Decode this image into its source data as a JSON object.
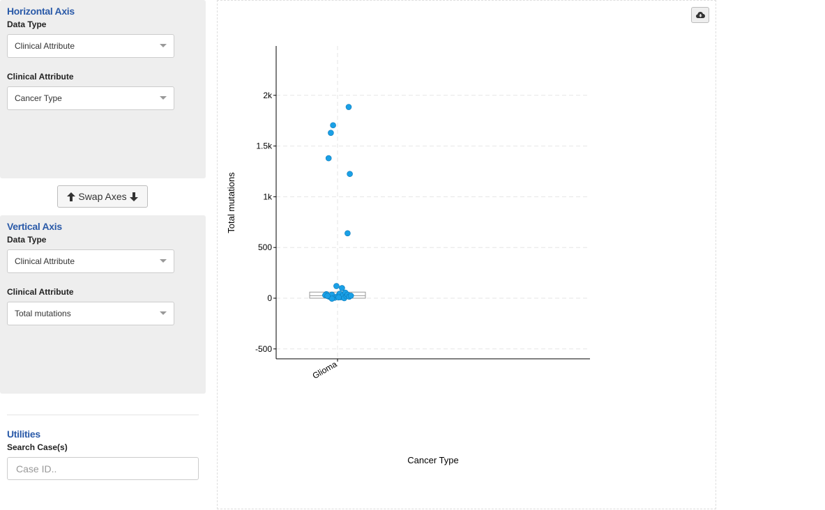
{
  "horizontal_axis": {
    "title": "Horizontal Axis",
    "data_type_label": "Data Type",
    "data_type_value": "Clinical Attribute",
    "attribute_label": "Clinical Attribute",
    "attribute_value": "Cancer Type"
  },
  "swap_axes": {
    "label": "Swap Axes"
  },
  "vertical_axis": {
    "title": "Vertical Axis",
    "data_type_label": "Data Type",
    "data_type_value": "Clinical Attribute",
    "attribute_label": "Clinical Attribute",
    "attribute_value": "Total mutations"
  },
  "utilities": {
    "title": "Utilities",
    "search_label": "Search Case(s)",
    "search_placeholder": "Case ID.."
  },
  "icons": {
    "swap_up": "arrow-up-icon",
    "swap_down": "arrow-down-icon",
    "download": "cloud-download-icon"
  },
  "colors": {
    "panel_title": "#2a5aa8",
    "point_fill": "#1aa0e6",
    "point_stroke": "#0a78b8",
    "box": "#999999"
  },
  "chart_data": {
    "type": "scatter",
    "xlabel": "Cancer Type",
    "ylabel": "Total mutations",
    "categories": [
      "Glioma"
    ],
    "ylim": [
      -600,
      2500
    ],
    "yticks": [
      {
        "value": -500,
        "label": "-500"
      },
      {
        "value": 0,
        "label": "0"
      },
      {
        "value": 500,
        "label": "500"
      },
      {
        "value": 1000,
        "label": "1k"
      },
      {
        "value": 1500,
        "label": "1.5k"
      },
      {
        "value": 2000,
        "label": "2k"
      }
    ],
    "grid": true,
    "box": {
      "category": "Glioma",
      "q1": 0,
      "median": 25,
      "q3": 60
    },
    "points": [
      {
        "category": "Glioma",
        "jitter": 0.2,
        "y": 1885
      },
      {
        "category": "Glioma",
        "jitter": -0.08,
        "y": 1705
      },
      {
        "category": "Glioma",
        "jitter": -0.12,
        "y": 1630
      },
      {
        "category": "Glioma",
        "jitter": -0.16,
        "y": 1380
      },
      {
        "category": "Glioma",
        "jitter": 0.22,
        "y": 1225
      },
      {
        "category": "Glioma",
        "jitter": 0.18,
        "y": 640
      },
      {
        "category": "Glioma",
        "jitter": -0.02,
        "y": 120
      },
      {
        "category": "Glioma",
        "jitter": 0.08,
        "y": 100
      },
      {
        "category": "Glioma",
        "jitter": -0.2,
        "y": 40
      },
      {
        "category": "Glioma",
        "jitter": -0.22,
        "y": 30
      },
      {
        "category": "Glioma",
        "jitter": -0.15,
        "y": 15
      },
      {
        "category": "Glioma",
        "jitter": -0.1,
        "y": 35
      },
      {
        "category": "Glioma",
        "jitter": -0.05,
        "y": 5
      },
      {
        "category": "Glioma",
        "jitter": -0.1,
        "y": -5
      },
      {
        "category": "Glioma",
        "jitter": 0.0,
        "y": 20
      },
      {
        "category": "Glioma",
        "jitter": 0.04,
        "y": 45
      },
      {
        "category": "Glioma",
        "jitter": 0.06,
        "y": 10
      },
      {
        "category": "Glioma",
        "jitter": 0.1,
        "y": 30
      },
      {
        "category": "Glioma",
        "jitter": 0.12,
        "y": 0
      },
      {
        "category": "Glioma",
        "jitter": 0.14,
        "y": 55
      },
      {
        "category": "Glioma",
        "jitter": 0.16,
        "y": 20
      },
      {
        "category": "Glioma",
        "jitter": 0.18,
        "y": 35
      },
      {
        "category": "Glioma",
        "jitter": 0.21,
        "y": 15
      },
      {
        "category": "Glioma",
        "jitter": 0.24,
        "y": 25
      },
      {
        "category": "Glioma",
        "jitter": -0.18,
        "y": 22
      },
      {
        "category": "Glioma",
        "jitter": 0.02,
        "y": 8
      }
    ]
  }
}
